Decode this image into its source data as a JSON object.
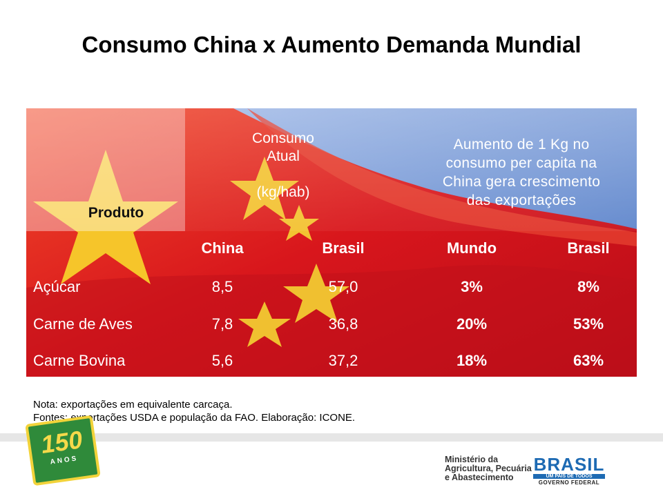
{
  "header": {
    "title": "Consumo China x Aumento Demanda Mundial"
  },
  "table": {
    "product_header": "Produto",
    "group_consumption": [
      "Consumo",
      "Atual",
      "(kg/hab)"
    ],
    "group_increase": [
      "Aumento de 1 Kg no",
      "consumo per capita na",
      "China gera crescimento",
      "das exportações"
    ],
    "columns": [
      "China",
      "Brasil",
      "Mundo",
      "Brasil"
    ],
    "rows": [
      [
        "Açúcar",
        "8,5",
        "57,0",
        "3%",
        "8%"
      ],
      [
        "Carne de Aves",
        "7,8",
        "36,8",
        "20%",
        "53%"
      ],
      [
        "Carne Bovina",
        "5,6",
        "37,2",
        "18%",
        "63%"
      ]
    ]
  },
  "notes": [
    "Nota: exportações em equivalente carcaça.",
    "Fontes: exportações USDA e população da FAO. Elaboração: ICONE."
  ],
  "footer": {
    "anniversary": [
      "150",
      "ANOS"
    ],
    "ministry": [
      "Ministério da",
      "Agricultura, Pecuária",
      "e Abastecimento"
    ],
    "government": [
      "BRASIL",
      "UM PAÍS DE TODOS",
      "GOVERNO FEDERAL"
    ]
  }
}
